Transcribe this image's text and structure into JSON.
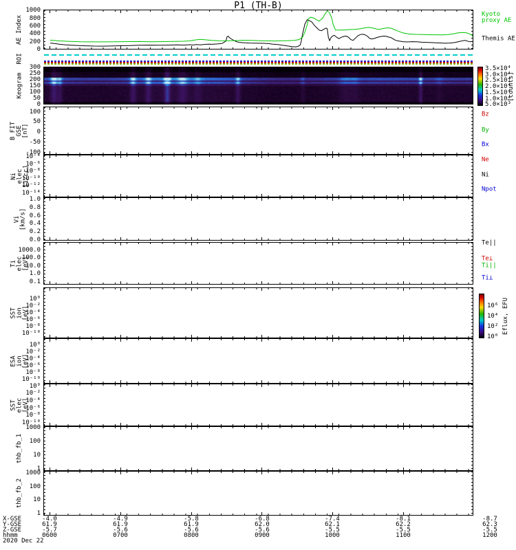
{
  "title": "P1 (TH-B)",
  "panels": [
    {
      "name": "ae-index",
      "ylabel_lines": "AE Index",
      "yticks": [
        "1000",
        "800",
        "600",
        "400",
        "200",
        "0"
      ],
      "legend": [
        {
          "text": "Kyoto\nproxy AE",
          "color": "#00c400"
        },
        {
          "text": "Themis AE",
          "color": "#000000"
        }
      ]
    },
    {
      "name": "roi",
      "ylabel_lines": "ROI",
      "lines": [
        {
          "color": "#00cccc",
          "frac": 0.17,
          "dash": [
            7,
            4
          ]
        },
        {
          "color": "#2222cc",
          "frac": 0.64,
          "dash": [
            3,
            2
          ]
        },
        {
          "color": "#cc0000",
          "frac": 0.76,
          "dash": [
            3,
            2
          ]
        },
        {
          "color": "#7ab800",
          "frac": 0.88,
          "dash": [
            3,
            2
          ]
        }
      ]
    },
    {
      "name": "keogram",
      "ylabel_lines": "Keogram",
      "yticks": [
        "300",
        "250",
        "200",
        "150",
        "100",
        "50",
        "0"
      ]
    },
    {
      "name": "b-fit-gse",
      "ylabel_lines": "B FIT\nGSE\n[nT]",
      "yticks": [
        "100",
        "50",
        "0",
        "-50",
        "-100"
      ],
      "legend": [
        {
          "text": "Bz",
          "color": "#d00000"
        },
        {
          "text": "By",
          "color": "#00b000"
        },
        {
          "text": "Bx",
          "color": "#0000d0"
        }
      ]
    },
    {
      "name": "ni-elec",
      "ylabel_lines": "Ni\nelec\n[1/cc]",
      "yticks": [
        "10⁻⁴",
        "10⁻⁶",
        "10⁻⁸",
        "10⁻¹⁰",
        "10⁻¹²",
        "10⁻¹⁴"
      ],
      "legend": [
        {
          "text": "Ne",
          "color": "#d00000"
        },
        {
          "text": "Ni",
          "color": "#000000"
        },
        {
          "text": "Npot",
          "color": "#0000d0"
        }
      ]
    },
    {
      "name": "vi",
      "ylabel_lines": "Vi\n[km/s]",
      "yticks": [
        "1.0",
        "0.8",
        "0.6",
        "0.4",
        "0.2",
        "0.0"
      ]
    },
    {
      "name": "ti-elec",
      "ylabel_lines": "Ti\nelec\n[eV]",
      "yticks": [
        "1000.0",
        "100.0",
        "10.0",
        "1.0",
        "0.1"
      ],
      "legend": [
        {
          "text": "Te||",
          "color": "#000000"
        },
        {
          "text": "Te⊥",
          "color": "#d00000"
        },
        {
          "text": "Ti||",
          "color": "#00b000"
        },
        {
          "text": "Ti⊥",
          "color": "#0000d0"
        }
      ]
    },
    {
      "name": "sst-ion",
      "ylabel_lines": "SST\nion\n[eV]",
      "yticks": [
        "10⁰",
        "10⁻²",
        "10⁻⁴",
        "10⁻⁶",
        "10⁻⁸",
        "10⁻¹⁰"
      ]
    },
    {
      "name": "esa-ion",
      "ylabel_lines": "ESA\nion\n[eV]",
      "yticks": [
        "10⁰",
        "10⁻²",
        "10⁻⁴",
        "10⁻⁶",
        "10⁻⁸",
        "10⁻¹⁰"
      ]
    },
    {
      "name": "sst-elec",
      "ylabel_lines": "SST\nelec\n[eV]",
      "yticks": [
        "10⁰",
        "10⁻²",
        "10⁻⁴",
        "10⁻⁶",
        "10⁻⁸",
        "10⁻¹⁰"
      ]
    },
    {
      "name": "thb-fb-1",
      "ylabel_lines": "thb_fb_1",
      "yticks": [
        "1000",
        "100",
        "10",
        "1"
      ]
    },
    {
      "name": "thb-fb-2",
      "ylabel_lines": "thb_fb_2",
      "yticks": [
        "1000",
        "100",
        "10",
        "1"
      ]
    }
  ],
  "colorbars": [
    {
      "name": "keogram-colorbar",
      "label": "[counts]",
      "ticks": [
        "3.5×10⁴",
        "3.0×10⁴",
        "2.5×10⁴",
        "2.0×10⁴",
        "1.5×10⁴",
        "1.0×10⁴",
        "5.0×10³"
      ]
    },
    {
      "name": "sst-colorbar",
      "label": "Eflux, EFU",
      "ticks": [
        "10⁶",
        "10⁴",
        "10²",
        "10⁰"
      ]
    }
  ],
  "bottom_axis": {
    "rows": [
      {
        "label": "X-GSE",
        "values": [
          "-4.0",
          "-4.9",
          "-5.8",
          "-6.8",
          "-7.4",
          "-8.1",
          "-8.7"
        ]
      },
      {
        "label": "Y-GSE",
        "values": [
          "61.9",
          "61.9",
          "61.9",
          "62.0",
          "62.1",
          "62.2",
          "62.3"
        ]
      },
      {
        "label": "Z-GSE",
        "values": [
          "-5.7",
          "-5.6",
          "-5.6",
          "-5.6",
          "-5.5",
          "-5.5",
          "-5.5"
        ]
      },
      {
        "label": "hhmm",
        "values": [
          "0600",
          "0700",
          "0800",
          "0900",
          "1000",
          "1100",
          "1200"
        ]
      }
    ],
    "date": "2020 Dec 22"
  },
  "chart_data": [
    {
      "type": "line",
      "title": "AE Index",
      "ylabel": "AE Index",
      "ylim": [
        0,
        1000
      ],
      "x_unit": "minutes after 0600 UT",
      "x_range_hhmm": [
        "0600",
        "1200"
      ],
      "legend_position": "right",
      "grid": false,
      "series": [
        {
          "name": "Themis AE",
          "color": "#000000",
          "x": [
            0,
            4,
            8,
            13,
            18,
            24,
            30,
            37,
            44,
            52,
            60,
            68,
            76,
            84,
            92,
            100,
            108,
            114,
            118,
            121,
            124,
            127,
            130,
            134,
            138,
            142,
            146,
            149,
            150,
            151,
            152,
            154,
            156,
            158,
            161,
            165,
            169,
            173,
            177,
            181,
            185,
            189,
            193,
            197,
            201,
            205,
            208,
            210,
            212,
            213,
            214,
            216,
            218,
            220,
            222,
            224,
            226,
            228,
            230,
            232,
            234,
            235,
            236,
            237,
            238,
            239,
            241,
            243,
            245,
            247,
            249,
            251,
            253,
            255,
            257,
            259,
            261,
            263,
            265,
            267,
            269,
            271,
            273,
            275,
            277,
            279,
            281,
            283,
            285,
            287,
            289,
            291,
            293,
            296,
            299,
            303,
            307,
            311,
            315,
            319,
            323,
            327,
            331,
            335,
            339,
            343,
            347,
            350,
            352,
            354,
            356,
            358,
            360
          ],
          "y": [
            150,
            135,
            118,
            103,
            92,
            84,
            78,
            72,
            70,
            74,
            80,
            86,
            92,
            96,
            92,
            96,
            101,
            96,
            108,
            98,
            110,
            103,
            112,
            122,
            118,
            126,
            140,
            200,
            310,
            330,
            290,
            250,
            215,
            185,
            165,
            155,
            150,
            148,
            145,
            142,
            135,
            122,
            110,
            95,
            75,
            58,
            48,
            60,
            95,
            200,
            380,
            640,
            753,
            730,
            695,
            610,
            552,
            490,
            470,
            505,
            540,
            523,
            300,
            210,
            280,
            322,
            351,
            300,
            264,
            300,
            322,
            333,
            300,
            240,
            220,
            280,
            340,
            370,
            379,
            365,
            330,
            270,
            255,
            270,
            293,
            310,
            322,
            330,
            325,
            305,
            293,
            255,
            220,
            200,
            185,
            178,
            185,
            182,
            172,
            167,
            163,
            158,
            152,
            145,
            150,
            162,
            190,
            210,
            218,
            200,
            182,
            190,
            196
          ]
        },
        {
          "name": "Kyoto proxy AE",
          "color": "#00c400",
          "x": [
            0,
            8,
            17,
            26,
            36,
            46,
            56,
            66,
            76,
            86,
            96,
            106,
            113,
            118,
            123,
            127,
            131,
            137,
            143,
            150,
            157,
            164,
            171,
            178,
            184,
            190,
            196,
            202,
            207,
            211,
            214,
            216,
            218,
            219,
            221,
            224,
            226,
            228,
            231,
            233,
            235,
            237,
            239,
            240,
            241,
            242,
            246,
            252,
            258,
            263,
            267,
            270,
            273,
            276,
            279,
            282,
            286,
            289,
            292,
            295,
            299,
            304,
            310,
            317,
            324,
            331,
            337,
            342,
            346,
            350,
            353,
            356,
            358,
            360
          ],
          "y": [
            225,
            205,
            193,
            183,
            180,
            180,
            183,
            187,
            190,
            183,
            187,
            193,
            196,
            205,
            230,
            247,
            235,
            220,
            210,
            207,
            215,
            222,
            218,
            210,
            207,
            204,
            207,
            213,
            220,
            240,
            300,
            430,
            620,
            780,
            820,
            795,
            750,
            720,
            790,
            900,
            983,
            940,
            780,
            640,
            560,
            490,
            488,
            497,
            505,
            520,
            545,
            555,
            545,
            520,
            505,
            525,
            545,
            535,
            500,
            460,
            415,
            385,
            375,
            370,
            365,
            362,
            368,
            390,
            415,
            425,
            415,
            385,
            350,
            320
          ]
        }
      ]
    },
    {
      "type": "heatmap",
      "title": "Keogram",
      "ylim": [
        0,
        300
      ],
      "colorbar_label": "[counts]",
      "colorbar_range": [
        5000,
        35000
      ],
      "description": "Auroral keogram: dark purple background, enhanced blue bands near y 165-215, bright vertical activity streaks",
      "bands": [
        [
          262,
          300,
          0.02
        ],
        [
          215,
          262,
          0.1
        ],
        [
          196,
          215,
          0.62
        ],
        [
          182,
          196,
          0.34
        ],
        [
          166,
          182,
          0.56
        ],
        [
          150,
          166,
          0.28
        ],
        [
          15,
          150,
          0.17
        ],
        [
          0,
          15,
          0.07
        ]
      ],
      "x_intensity_15min": [
        0.9,
        0.85,
        0.8,
        0.8,
        0.85,
        1.0,
        1.1,
        1.15,
        1.1,
        1.05,
        1.0,
        0.85,
        0.75,
        0.7,
        0.7,
        0.75,
        0.8,
        0.85,
        0.9,
        0.9,
        0.88,
        0.85,
        0.82,
        0.8,
        0.8
      ],
      "streaks_min_width_boost": [
        [
          3,
          3,
          0.55
        ],
        [
          8,
          2,
          0.35
        ],
        [
          70,
          2.5,
          0.45
        ],
        [
          83,
          2.5,
          0.4
        ],
        [
          99,
          2.5,
          0.75
        ],
        [
          112,
          4,
          0.35
        ],
        [
          125,
          3,
          0.2
        ],
        [
          159,
          2,
          0.4
        ],
        [
          214,
          2,
          0.15
        ],
        [
          250,
          5,
          0.18
        ],
        [
          258,
          4,
          0.15
        ],
        [
          314,
          1.5,
          0.5
        ],
        [
          330,
          3,
          0.1
        ]
      ],
      "colormap": [
        [
          0,
          "#000002"
        ],
        [
          0.08,
          "#12001c"
        ],
        [
          0.2,
          "#2a0a3c"
        ],
        [
          0.35,
          "#3c1464"
        ],
        [
          0.5,
          "#343b9e"
        ],
        [
          0.62,
          "#2e5fd0"
        ],
        [
          0.78,
          "#30a2e4"
        ],
        [
          1,
          "#bfe9f7"
        ]
      ]
    },
    {
      "type": "none",
      "note": "Remaining panels show axes only; no data traces visible",
      "panels": [
        "B FIT GSE [nT]",
        "Ni elec [1/cc]",
        "Vi [km/s]",
        "Ti elec [eV]",
        "SST ion [eV]",
        "ESA ion [eV]",
        "SST elec [eV]",
        "thb_fb_1",
        "thb_fb_2"
      ]
    }
  ]
}
